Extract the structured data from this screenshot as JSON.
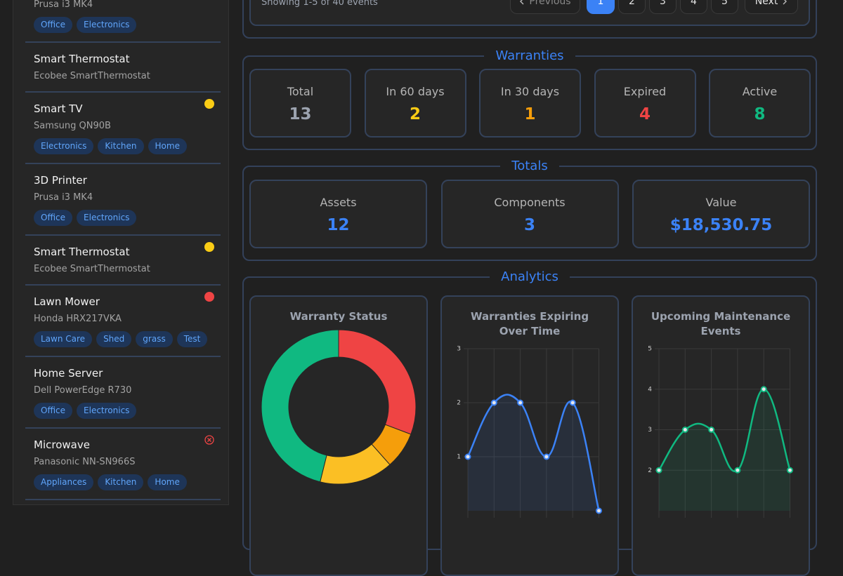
{
  "sidebar": {
    "items": [
      {
        "subtitle": "Prusa i3 MK4",
        "tags": [
          "Office",
          "Electronics"
        ]
      },
      {
        "title": "Smart Thermostat",
        "subtitle": "Ecobee SmartThermostat",
        "tags": []
      },
      {
        "title": "Smart TV",
        "subtitle": "Samsung QN90B",
        "indicator": "warning",
        "tags": [
          "Electronics",
          "Kitchen",
          "Home"
        ]
      },
      {
        "title": "3D Printer",
        "subtitle": "Prusa i3 MK4",
        "tags": [
          "Office",
          "Electronics"
        ]
      },
      {
        "title": "Smart Thermostat",
        "subtitle": "Ecobee SmartThermostat",
        "indicator": "warning",
        "tags": []
      },
      {
        "title": "Lawn Mower",
        "subtitle": "Honda HRX217VKA",
        "indicator": "danger",
        "tags": [
          "Lawn Care",
          "Shed",
          "grass",
          "Test"
        ]
      },
      {
        "title": "Home Server",
        "subtitle": "Dell PowerEdge R730",
        "tags": [
          "Office",
          "Electronics"
        ]
      },
      {
        "title": "Microwave",
        "subtitle": "Panasonic NN-SN966S",
        "indicator": "failed",
        "tags": [
          "Appliances",
          "Kitchen",
          "Home"
        ]
      }
    ]
  },
  "events": {
    "summary": "Showing 1-5 of 40 events",
    "pagination": {
      "previous": "Previous",
      "pages": [
        1,
        2,
        3,
        4,
        5
      ],
      "current": 1,
      "next": "Next"
    }
  },
  "warranties": {
    "title": "Warranties",
    "stats": [
      {
        "label": "Total",
        "value": 13,
        "color": "#9ca3af"
      },
      {
        "label": "In 60 days",
        "value": 2,
        "color": "#facc15"
      },
      {
        "label": "In 30 days",
        "value": 1,
        "color": "#f59e0b"
      },
      {
        "label": "Expired",
        "value": 4,
        "color": "#ef4444"
      },
      {
        "label": "Active",
        "value": 8,
        "color": "#10b981"
      }
    ]
  },
  "totals": {
    "title": "Totals",
    "stats": [
      {
        "label": "Assets",
        "value": 12,
        "color": "#3b82f6"
      },
      {
        "label": "Components",
        "value": 3,
        "color": "#3b82f6"
      },
      {
        "label": "Value",
        "value": "$18,530.75",
        "color": "#3b82f6"
      }
    ]
  },
  "analytics": {
    "title": "Analytics"
  },
  "chart_data": [
    {
      "type": "doughnut",
      "title": "Warranty Status",
      "values": [
        4,
        1,
        2,
        6
      ],
      "colors": [
        "#ef4444",
        "#f59e0b",
        "#fbbf24",
        "#10b981"
      ]
    },
    {
      "type": "line",
      "title": "Warranties Expiring Over Time",
      "values": [
        1,
        2,
        2,
        1,
        2,
        0
      ],
      "color": "#3b82f6",
      "ylim": [
        0,
        3
      ],
      "yticks": [
        1,
        2,
        3
      ],
      "grid": true
    },
    {
      "type": "line",
      "title": "Upcoming Maintenance Events",
      "values": [
        2,
        3,
        3,
        2,
        4,
        2
      ],
      "color": "#10b981",
      "ylim": [
        1,
        5
      ],
      "yticks": [
        2,
        3,
        4,
        5
      ],
      "grid": true
    }
  ]
}
